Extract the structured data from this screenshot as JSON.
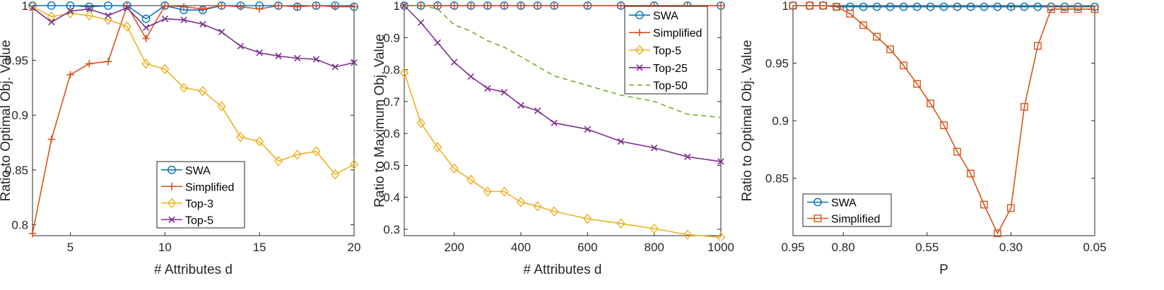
{
  "chart_data": [
    {
      "type": "line",
      "xlabel": "# Attributes d",
      "ylabel": "Ratio to Optimal Obj. Value",
      "xlim": [
        3,
        20
      ],
      "ylim": [
        0.79,
        1.0
      ],
      "xticks": [
        5,
        10,
        15,
        20
      ],
      "yticks": [
        0.8,
        0.85,
        0.9,
        0.95,
        1
      ],
      "legend": "bottom-center",
      "x": [
        3,
        4,
        5,
        6,
        7,
        8,
        9,
        10,
        11,
        12,
        13,
        14,
        15,
        16,
        17,
        18,
        19,
        20
      ],
      "series": [
        {
          "name": "SWA",
          "color": "#0072BD",
          "marker": "circle",
          "values": [
            1.0,
            1.0,
            1.0,
            0.999,
            1.0,
            1.0,
            0.988,
            1.0,
            0.996,
            0.996,
            1.0,
            1.0,
            1.0,
            1.0,
            0.999,
            1.0,
            1.0,
            0.999
          ]
        },
        {
          "name": "Simplified",
          "color": "#D95319",
          "marker": "plus",
          "values": [
            0.792,
            0.878,
            0.937,
            0.947,
            0.949,
            1.0,
            0.97,
            1.0,
            0.999,
            0.997,
            1.0,
            0.999,
            0.997,
            1.0,
            0.999,
            1.0,
            0.999,
            0.999
          ]
        },
        {
          "name": "Top-3",
          "color": "#EDB120",
          "marker": "diamond",
          "values": [
            0.999,
            0.99,
            0.993,
            0.991,
            0.987,
            0.981,
            0.947,
            0.942,
            0.925,
            0.922,
            0.908,
            0.88,
            0.876,
            0.858,
            0.864,
            0.867,
            0.846,
            0.855
          ]
        },
        {
          "name": "Top-5",
          "color": "#7E2F8E",
          "marker": "x",
          "values": [
            0.998,
            0.985,
            0.995,
            0.997,
            0.991,
            0.998,
            0.98,
            0.988,
            0.987,
            0.983,
            0.976,
            0.963,
            0.957,
            0.954,
            0.952,
            0.951,
            0.944,
            0.948
          ]
        }
      ]
    },
    {
      "type": "line",
      "xlabel": "# Attributes d",
      "ylabel": "Ratio to Maximum Obj. Value",
      "xlim": [
        50,
        1000
      ],
      "ylim": [
        0.28,
        1.0
      ],
      "xticks": [
        200,
        400,
        600,
        800,
        1000
      ],
      "yticks": [
        0.3,
        0.4,
        0.5,
        0.6,
        0.7,
        0.8,
        0.9,
        1
      ],
      "legend": "top-right",
      "x": [
        50,
        100,
        150,
        200,
        250,
        300,
        350,
        400,
        450,
        500,
        600,
        700,
        800,
        900,
        1000
      ],
      "series": [
        {
          "name": "SWA",
          "color": "#0072BD",
          "marker": "circle",
          "values": [
            1,
            1,
            1,
            1,
            1,
            1,
            1,
            1,
            1,
            1,
            1,
            1,
            1,
            1,
            1
          ]
        },
        {
          "name": "Simplified",
          "color": "#D95319",
          "marker": "plus",
          "values": [
            1,
            1,
            1,
            1,
            1,
            1,
            1,
            1,
            1,
            1,
            1,
            1,
            1,
            1,
            1
          ]
        },
        {
          "name": "Top-5",
          "color": "#EDB120",
          "marker": "diamond",
          "values": [
            0.79,
            0.632,
            0.557,
            0.49,
            0.455,
            0.418,
            0.418,
            0.385,
            0.372,
            0.356,
            0.333,
            0.318,
            0.302,
            0.283,
            0.275
          ]
        },
        {
          "name": "Top-25",
          "color": "#7E2F8E",
          "marker": "x",
          "values": [
            1.0,
            0.947,
            0.884,
            0.823,
            0.778,
            0.741,
            0.729,
            0.688,
            0.671,
            0.633,
            0.613,
            0.575,
            0.555,
            0.527,
            0.512
          ]
        },
        {
          "name": "Top-50",
          "color": "#77AC30",
          "marker": "none",
          "dashed": true,
          "values": [
            1.0,
            1.0,
            0.99,
            0.94,
            0.92,
            0.89,
            0.87,
            0.84,
            0.81,
            0.78,
            0.75,
            0.72,
            0.7,
            0.66,
            0.65
          ]
        }
      ]
    },
    {
      "type": "line",
      "xlabel": "P",
      "ylabel": "Ratio to Optimal Obj. Value",
      "xlim": [
        0.95,
        0.05
      ],
      "ylim": [
        0.8,
        1.0
      ],
      "xticks": [
        0.95,
        0.8,
        0.55,
        0.3,
        0.05
      ],
      "xtick_labels": [
        "0.95",
        "0.80",
        "0.55",
        "0.30",
        "0.05"
      ],
      "yticks": [
        0.85,
        0.9,
        0.95,
        1
      ],
      "legend": "bottom-left",
      "x": [
        0.95,
        0.9,
        0.86,
        0.82,
        0.78,
        0.74,
        0.7,
        0.66,
        0.62,
        0.58,
        0.54,
        0.5,
        0.46,
        0.42,
        0.38,
        0.34,
        0.3,
        0.26,
        0.22,
        0.18,
        0.14,
        0.1,
        0.05
      ],
      "series": [
        {
          "name": "SWA",
          "color": "#0072BD",
          "marker": "circle",
          "values": [
            1.0,
            1.0,
            1.0,
            0.999,
            0.999,
            0.999,
            0.999,
            0.999,
            0.999,
            0.999,
            0.999,
            0.999,
            0.999,
            0.999,
            0.999,
            0.999,
            0.999,
            0.999,
            0.999,
            0.999,
            0.999,
            0.999,
            0.999
          ]
        },
        {
          "name": "Simplified",
          "color": "#D95319",
          "marker": "square",
          "values": [
            1.0,
            1.0,
            1.0,
            0.999,
            0.993,
            0.983,
            0.973,
            0.962,
            0.948,
            0.932,
            0.915,
            0.896,
            0.873,
            0.854,
            0.827,
            0.802,
            0.824,
            0.912,
            0.965,
            0.997,
            0.997,
            0.997,
            0.997
          ]
        }
      ]
    }
  ]
}
